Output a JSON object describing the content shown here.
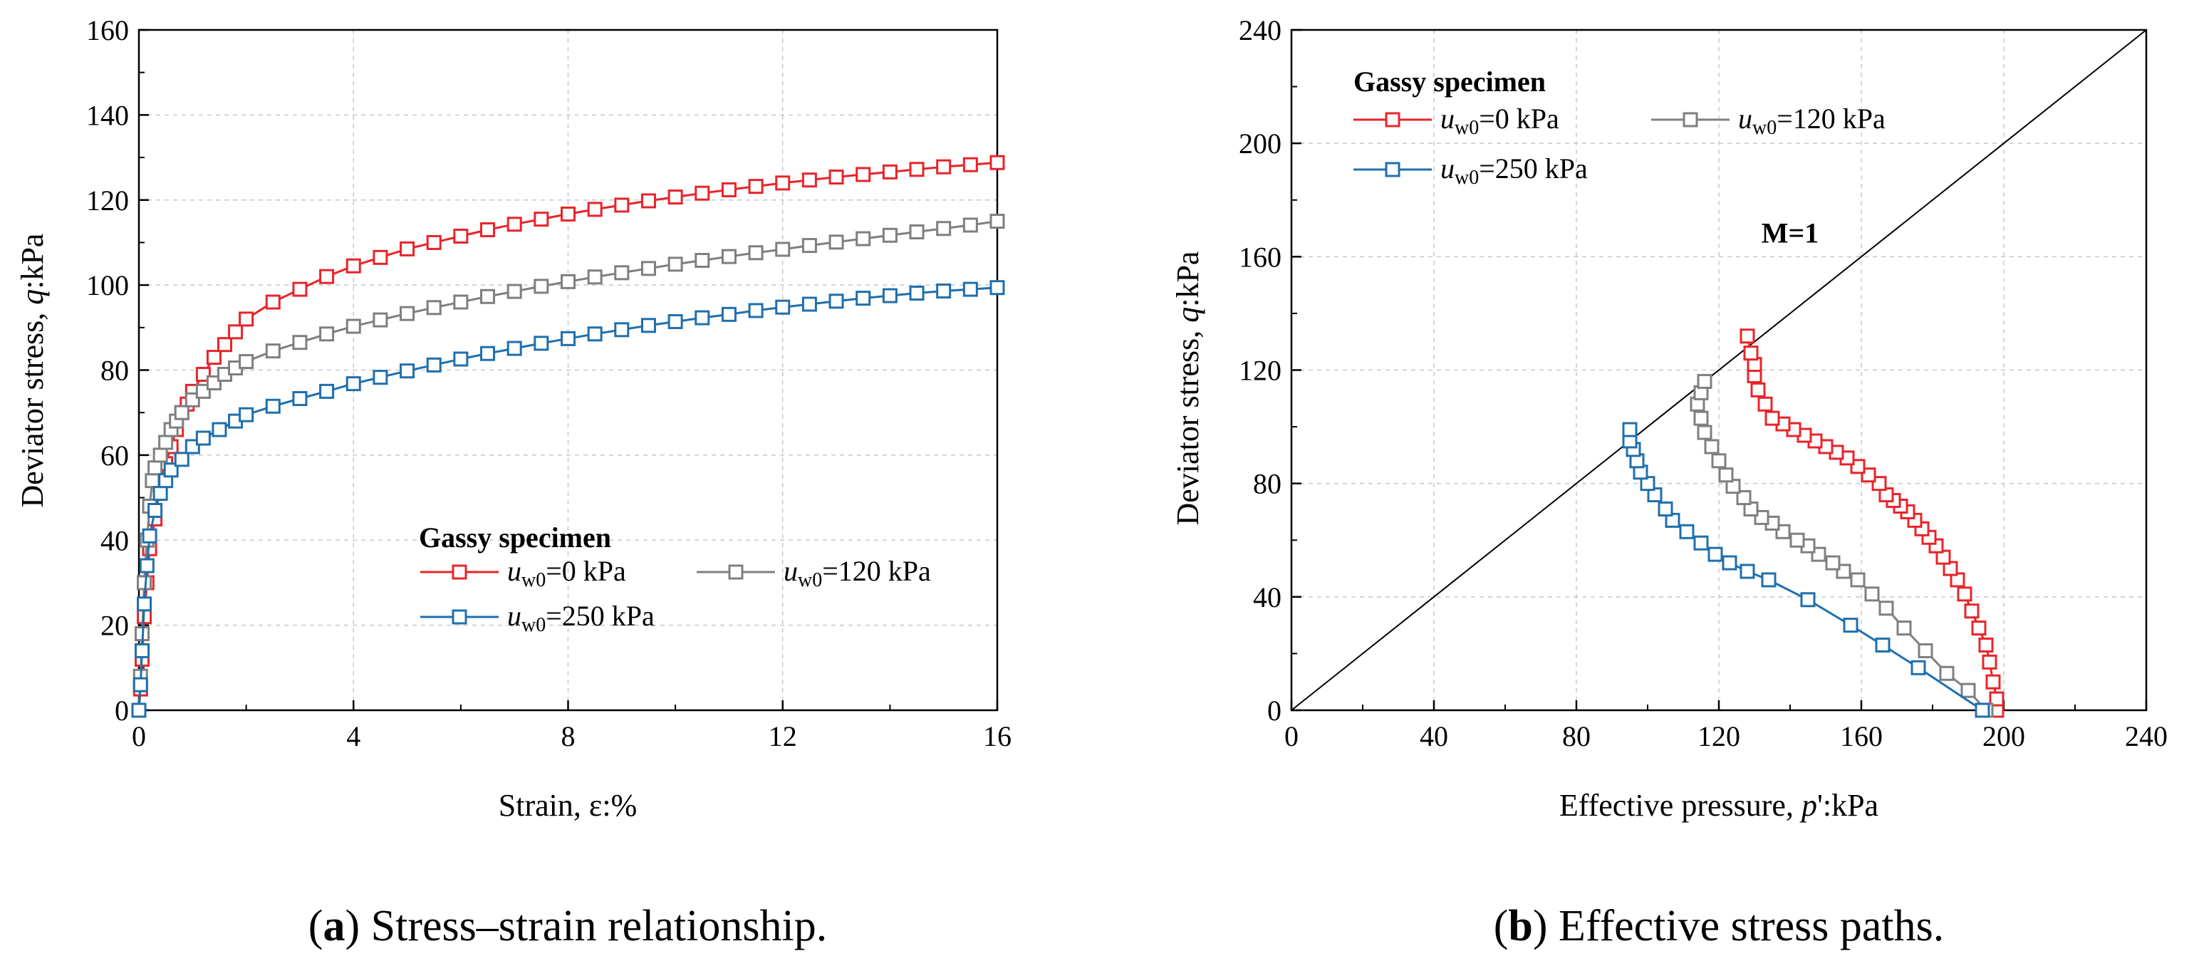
{
  "colors": {
    "red": "#e8242a",
    "gray": "#7f7f7f",
    "blue": "#1f6fad"
  },
  "captions": [
    {
      "letter": "a",
      "text": " Stress–strain relationship."
    },
    {
      "letter": "b",
      "text": " Effective stress paths."
    }
  ],
  "chart_data": [
    {
      "type": "line",
      "panel": "a",
      "xlabel": "Strain, ε:%",
      "ylabel_parts": [
        "Deviator stress, ",
        "q",
        ":kPa"
      ],
      "xlim": [
        0,
        16
      ],
      "ylim": [
        0,
        160
      ],
      "xticks": [
        0,
        4,
        8,
        12,
        16
      ],
      "yticks": [
        0,
        20,
        40,
        60,
        80,
        100,
        120,
        140,
        160
      ],
      "legend": {
        "title": "Gassy specimen",
        "position": "lower-right"
      },
      "series": [
        {
          "name": "u_w0=0 kPa",
          "label_var": "u",
          "label_sub": "w0",
          "label_rest": "=0 kPa",
          "color_key": "red",
          "points": [
            [
              0,
              0
            ],
            [
              0.03,
              5
            ],
            [
              0.06,
              12
            ],
            [
              0.1,
              22
            ],
            [
              0.15,
              30
            ],
            [
              0.2,
              38
            ],
            [
              0.3,
              45
            ],
            [
              0.4,
              53
            ],
            [
              0.5,
              58
            ],
            [
              0.6,
              62
            ],
            [
              0.7,
              66
            ],
            [
              0.8,
              70
            ],
            [
              0.9,
              72
            ],
            [
              1.0,
              75
            ],
            [
              1.2,
              79
            ],
            [
              1.4,
              83
            ],
            [
              1.6,
              86
            ],
            [
              1.8,
              89
            ],
            [
              2.0,
              92
            ],
            [
              2.5,
              96
            ],
            [
              3.0,
              99
            ],
            [
              3.5,
              102
            ],
            [
              4.0,
              104.5
            ],
            [
              4.5,
              106.5
            ],
            [
              5.0,
              108.5
            ],
            [
              5.5,
              110
            ],
            [
              6.0,
              111.5
            ],
            [
              6.5,
              113
            ],
            [
              7.0,
              114.3
            ],
            [
              7.5,
              115.5
            ],
            [
              8.0,
              116.7
            ],
            [
              8.5,
              117.8
            ],
            [
              9.0,
              118.8
            ],
            [
              9.5,
              119.8
            ],
            [
              10.0,
              120.7
            ],
            [
              10.5,
              121.6
            ],
            [
              11.0,
              122.4
            ],
            [
              11.5,
              123.2
            ],
            [
              12.0,
              124
            ],
            [
              12.5,
              124.7
            ],
            [
              13.0,
              125.4
            ],
            [
              13.5,
              126
            ],
            [
              14.0,
              126.6
            ],
            [
              14.5,
              127.2
            ],
            [
              15.0,
              127.8
            ],
            [
              15.5,
              128.3
            ],
            [
              16.0,
              128.8
            ]
          ]
        },
        {
          "name": "u_w0=120 kPa",
          "label_var": "u",
          "label_sub": "w0",
          "label_rest": "=120 kPa",
          "color_key": "gray",
          "points": [
            [
              0,
              0
            ],
            [
              0.03,
              8
            ],
            [
              0.06,
              18
            ],
            [
              0.1,
              30
            ],
            [
              0.15,
              40
            ],
            [
              0.2,
              48
            ],
            [
              0.25,
              54
            ],
            [
              0.3,
              57
            ],
            [
              0.4,
              60
            ],
            [
              0.5,
              63
            ],
            [
              0.6,
              66
            ],
            [
              0.7,
              68
            ],
            [
              0.8,
              70
            ],
            [
              1.0,
              73
            ],
            [
              1.2,
              75
            ],
            [
              1.4,
              77
            ],
            [
              1.6,
              79
            ],
            [
              1.8,
              80.5
            ],
            [
              2.0,
              82
            ],
            [
              2.5,
              84.5
            ],
            [
              3.0,
              86.5
            ],
            [
              3.5,
              88.5
            ],
            [
              4.0,
              90.3
            ],
            [
              4.5,
              91.8
            ],
            [
              5.0,
              93.3
            ],
            [
              5.5,
              94.7
            ],
            [
              6.0,
              96
            ],
            [
              6.5,
              97.3
            ],
            [
              7.0,
              98.5
            ],
            [
              7.5,
              99.7
            ],
            [
              8.0,
              100.8
            ],
            [
              8.5,
              101.9
            ],
            [
              9.0,
              102.9
            ],
            [
              9.5,
              103.9
            ],
            [
              10.0,
              104.9
            ],
            [
              10.5,
              105.8
            ],
            [
              11.0,
              106.7
            ],
            [
              11.5,
              107.6
            ],
            [
              12.0,
              108.4
            ],
            [
              12.5,
              109.3
            ],
            [
              13.0,
              110.1
            ],
            [
              13.5,
              110.9
            ],
            [
              14.0,
              111.7
            ],
            [
              14.5,
              112.5
            ],
            [
              15.0,
              113.3
            ],
            [
              15.5,
              114.1
            ],
            [
              16.0,
              115
            ]
          ]
        },
        {
          "name": "u_w0=250 kPa",
          "label_var": "u",
          "label_sub": "w0",
          "label_rest": "=250 kPa",
          "color_key": "blue",
          "points": [
            [
              0,
              0
            ],
            [
              0.03,
              6
            ],
            [
              0.06,
              14
            ],
            [
              0.1,
              25
            ],
            [
              0.15,
              34
            ],
            [
              0.2,
              41
            ],
            [
              0.3,
              47
            ],
            [
              0.4,
              51
            ],
            [
              0.5,
              54
            ],
            [
              0.6,
              56.5
            ],
            [
              0.8,
              59
            ],
            [
              1.0,
              62
            ],
            [
              1.2,
              64
            ],
            [
              1.5,
              66
            ],
            [
              1.8,
              68
            ],
            [
              2.0,
              69.5
            ],
            [
              2.5,
              71.5
            ],
            [
              3.0,
              73.3
            ],
            [
              3.5,
              75
            ],
            [
              4.0,
              76.8
            ],
            [
              4.5,
              78.3
            ],
            [
              5.0,
              79.8
            ],
            [
              5.5,
              81.2
            ],
            [
              6.0,
              82.6
            ],
            [
              6.5,
              83.9
            ],
            [
              7.0,
              85.1
            ],
            [
              7.5,
              86.3
            ],
            [
              8.0,
              87.4
            ],
            [
              8.5,
              88.5
            ],
            [
              9.0,
              89.5
            ],
            [
              9.5,
              90.5
            ],
            [
              10.0,
              91.4
            ],
            [
              10.5,
              92.3
            ],
            [
              11.0,
              93.1
            ],
            [
              11.5,
              94
            ],
            [
              12.0,
              94.8
            ],
            [
              12.5,
              95.5
            ],
            [
              13.0,
              96.2
            ],
            [
              13.5,
              96.9
            ],
            [
              14.0,
              97.5
            ],
            [
              14.5,
              98.1
            ],
            [
              15.0,
              98.6
            ],
            [
              15.5,
              99
            ],
            [
              16.0,
              99.4
            ]
          ]
        }
      ]
    },
    {
      "type": "line",
      "panel": "b",
      "xlabel_parts": [
        "Effective pressure, ",
        "p",
        "':kPa"
      ],
      "ylabel_parts": [
        "Deviator stress, ",
        "q",
        ":kPa"
      ],
      "xlim": [
        0,
        240
      ],
      "ylim": [
        0,
        240
      ],
      "xticks": [
        0,
        40,
        80,
        120,
        160,
        200,
        240
      ],
      "yticks": [
        0,
        40,
        80,
        120,
        160,
        200,
        240
      ],
      "legend": {
        "title": "Gassy specimen",
        "position": "top-left"
      },
      "reference_line": {
        "label": "M=1",
        "slope": 1,
        "from": [
          0,
          0
        ],
        "to": [
          240,
          240
        ],
        "label_at": [
          140,
          165
        ]
      },
      "series": [
        {
          "name": "u_w0=0 kPa",
          "label_var": "u",
          "label_sub": "w0",
          "label_rest": "=0 kPa",
          "color_key": "red",
          "points": [
            [
              198,
              0
            ],
            [
              198,
              4
            ],
            [
              197,
              10
            ],
            [
              196,
              17
            ],
            [
              195,
              23
            ],
            [
              193,
              29
            ],
            [
              191,
              35
            ],
            [
              189,
              41
            ],
            [
              187,
              46
            ],
            [
              185,
              50
            ],
            [
              183,
              54
            ],
            [
              181,
              58
            ],
            [
              179,
              61
            ],
            [
              177,
              64
            ],
            [
              175,
              67
            ],
            [
              173,
              70
            ],
            [
              171,
              72
            ],
            [
              169,
              74
            ],
            [
              167,
              76
            ],
            [
              165,
              80
            ],
            [
              162,
              83
            ],
            [
              159,
              86
            ],
            [
              156,
              89
            ],
            [
              153,
              91
            ],
            [
              150,
              93
            ],
            [
              147,
              95
            ],
            [
              144,
              97
            ],
            [
              141,
              99
            ],
            [
              138,
              101
            ],
            [
              135,
              103
            ],
            [
              133,
              108
            ],
            [
              131,
              113
            ],
            [
              130,
              118
            ],
            [
              130,
              122
            ],
            [
              129,
              126
            ],
            [
              128,
              132
            ]
          ]
        },
        {
          "name": "u_w0=120 kPa",
          "label_var": "u",
          "label_sub": "w0",
          "label_rest": "=120 kPa",
          "color_key": "gray",
          "points": [
            [
              195,
              0
            ],
            [
              190,
              7
            ],
            [
              184,
              13
            ],
            [
              178,
              21
            ],
            [
              172,
              29
            ],
            [
              167,
              36
            ],
            [
              163,
              41
            ],
            [
              159,
              46
            ],
            [
              155,
              49
            ],
            [
              152,
              52
            ],
            [
              148,
              55
            ],
            [
              145,
              58
            ],
            [
              142,
              60
            ],
            [
              138,
              63
            ],
            [
              135,
              66
            ],
            [
              132,
              68
            ],
            [
              129,
              71
            ],
            [
              127,
              75
            ],
            [
              124,
              79
            ],
            [
              122,
              83
            ],
            [
              120,
              88
            ],
            [
              118,
              93
            ],
            [
              116,
              98
            ],
            [
              115,
              103
            ],
            [
              114,
              108
            ],
            [
              115,
              112
            ],
            [
              116,
              116
            ]
          ]
        },
        {
          "name": "u_w0=250 kPa",
          "label_var": "u",
          "label_sub": "w0",
          "label_rest": "=250 kPa",
          "color_key": "blue",
          "points": [
            [
              194,
              0
            ],
            [
              176,
              15
            ],
            [
              166,
              23
            ],
            [
              157,
              30
            ],
            [
              145,
              39
            ],
            [
              134,
              46
            ],
            [
              128,
              49
            ],
            [
              123,
              52
            ],
            [
              119,
              55
            ],
            [
              115,
              59
            ],
            [
              111,
              63
            ],
            [
              107,
              67
            ],
            [
              105,
              71
            ],
            [
              102,
              76
            ],
            [
              100,
              80
            ],
            [
              98,
              84
            ],
            [
              97,
              88
            ],
            [
              96,
              92
            ],
            [
              95,
              95
            ],
            [
              95,
              99
            ]
          ]
        }
      ]
    }
  ]
}
